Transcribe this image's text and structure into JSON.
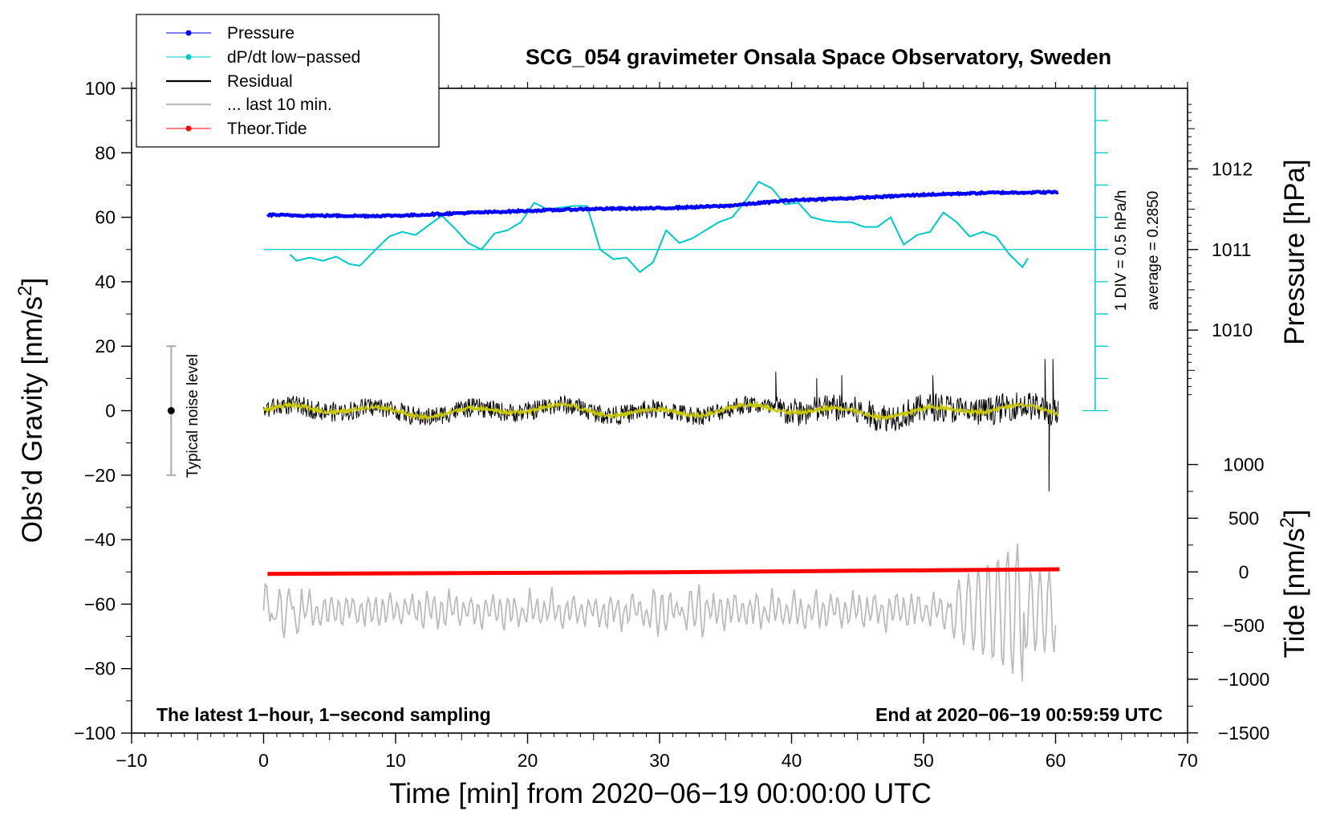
{
  "colors": {
    "pressure": "#0000ff",
    "dpdt": "#00c8c8",
    "residual": "#000000",
    "last10": "#bbbbbb",
    "tide": "#ff0000",
    "smooth": "#c8c800",
    "noise_bar": "#aaaaaa"
  },
  "chart_data": {
    "type": "line",
    "title": "SCG_054 gravimeter Onsala Space Observatory, Sweden",
    "xlabel": "Time [min] from 2020−06−19 00:00:00 UTC",
    "ylabel": "Obs’d Gravity [nm/s",
    "ylabel_sup": "2",
    "ylabel_end": "]",
    "xlim": [
      -10,
      70
    ],
    "ylim": [
      -100,
      100
    ],
    "x_ticks": [
      -10,
      0,
      10,
      20,
      30,
      40,
      50,
      60,
      70
    ],
    "x_tick_labels": [
      "−10",
      "0",
      "10",
      "20",
      "30",
      "40",
      "50",
      "60",
      "70"
    ],
    "y_ticks": [
      -100,
      -80,
      -60,
      -40,
      -20,
      0,
      20,
      40,
      60,
      80,
      100
    ],
    "y_tick_labels": [
      "−100",
      "−80",
      "−60",
      "−40",
      "−20",
      "0",
      "20",
      "40",
      "60",
      "80",
      "100"
    ],
    "pressure_axis": {
      "label": "Pressure [hPa]",
      "ticks": [
        1010,
        1011,
        1012
      ],
      "tick_labels": [
        "1010",
        "1011",
        "1012"
      ],
      "gravity_at_1011": 50,
      "gravity_per_hPa": 25
    },
    "tide_axis": {
      "label": "Tide [nm/s",
      "label_sup": "2",
      "label_end": "]",
      "ticks": [
        -1500,
        -1000,
        -500,
        0,
        500,
        1000
      ],
      "tick_labels": [
        "−1500",
        "−1000",
        "−500",
        "0",
        "500",
        "1000"
      ],
      "gravity_at_0": -50,
      "gravity_per_unit": 0.0333
    },
    "dpdt_scale": {
      "label_div": "1 DIV = 0.5 hPa/h",
      "label_avg": "average = 0.2850",
      "x": 63,
      "y_range": [
        0,
        100
      ],
      "divisions": 10,
      "baseline": 50
    },
    "noise_bar": {
      "label": "Typical noise level",
      "x": -7,
      "center": 0,
      "range": [
        -20,
        20
      ]
    },
    "legend": {
      "position": "top-left",
      "entries": [
        "Pressure",
        "dP/dt low−passed",
        "Residual",
        "... last 10 min.",
        "Theor.Tide"
      ]
    },
    "footer_left": "The latest 1−hour, 1−second sampling",
    "footer_right": "End at 2020−06−19 00:59:59 UTC",
    "series": [
      {
        "name": "Pressure",
        "units": "gravity-axis",
        "x": [
          0.3,
          2,
          5,
          8,
          11,
          15,
          20,
          25,
          30,
          35,
          40,
          45,
          50,
          55,
          60.3
        ],
        "values": [
          60.8,
          60.6,
          60.5,
          60.4,
          60.6,
          61.3,
          62.0,
          62.6,
          62.8,
          63.5,
          65.3,
          66.0,
          67.0,
          67.6,
          67.8
        ]
      },
      {
        "name": "dP/dt low-passed",
        "units": "gravity-axis",
        "x": [
          2,
          2.5,
          3.5,
          4.5,
          5.5,
          6.5,
          7.3,
          8.5,
          9.5,
          10.5,
          11.5,
          12.5,
          13.5,
          14.5,
          15.5,
          16.5,
          17.5,
          18.5,
          19.5,
          20.5,
          21.5,
          22.5,
          23.5,
          24.5,
          25.5,
          26.5,
          27.5,
          28.5,
          29.5,
          30.5,
          31.5,
          32.5,
          33.5,
          34.5,
          35.5,
          36.5,
          37.5,
          38.5,
          39.5,
          40.5,
          41.5,
          42.5,
          43.5,
          44.5,
          45.5,
          46.5,
          47.5,
          48.5,
          49.5,
          50.5,
          51.5,
          52.5,
          53.5,
          54.5,
          55.5,
          56.5,
          57.5,
          58
        ],
        "values": [
          48.5,
          46.5,
          47.5,
          46.5,
          47.8,
          45.5,
          45.0,
          50.0,
          54.0,
          55.5,
          54.5,
          57.5,
          60.5,
          56.5,
          52.0,
          50.0,
          55.0,
          56.0,
          58.5,
          64.5,
          62.5,
          63.0,
          63.5,
          63.5,
          50.0,
          47.0,
          47.5,
          43.0,
          46.0,
          56.0,
          52.0,
          53.5,
          56.0,
          58.5,
          60.0,
          65.0,
          71.0,
          69.0,
          64.0,
          64.5,
          60.0,
          59.0,
          58.5,
          58.5,
          57.0,
          57.0,
          60.0,
          51.5,
          54.5,
          55.5,
          61.5,
          58.5,
          54.0,
          55.5,
          54.0,
          48.5,
          44.5,
          48.0
        ]
      },
      {
        "name": "Residual",
        "units": "gravity-axis",
        "x_range": [
          0,
          60.2
        ],
        "baseline": 0,
        "typical_amplitude": 3,
        "spikes_x": [
          38.8,
          41.9,
          43.8,
          50.7,
          59.2,
          59.5,
          59.8
        ],
        "spikes_y": [
          12,
          10,
          11,
          11,
          16,
          -25,
          16
        ]
      },
      {
        "name": "Theor.Tide",
        "units": "gravity-axis",
        "x": [
          0.3,
          30,
          60.3
        ],
        "values": [
          -50.6,
          -50.1,
          -49.2
        ]
      },
      {
        "name": "... last 10 min.",
        "units": "gravity-axis",
        "x_range": [
          0,
          60
        ],
        "baseline": -62,
        "typical_amplitude": 4,
        "burst_x": [
          52,
          57.5
        ],
        "burst_peaks": [
          -52,
          -78,
          -53,
          -80,
          -50,
          -86,
          -50,
          -75
        ]
      }
    ]
  }
}
